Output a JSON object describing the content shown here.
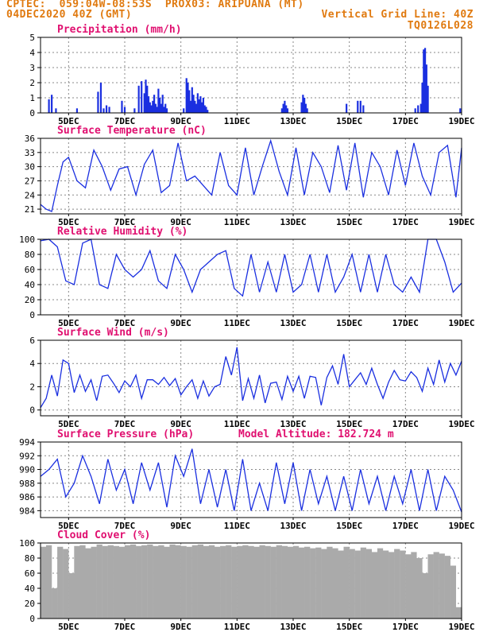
{
  "header": {
    "line1_left": "CPTEC:  059:04W-08:53S  PROX03: ARIPUANA (MT)",
    "line2_left": "04DEC2020 40Z (GMT)",
    "line2_right": "Vertical Grid Line: 40Z",
    "line3_right": "TQ0126L028"
  },
  "colors": {
    "header": "#e07a10",
    "title": "#e01070",
    "line": "#1a2fe0",
    "bar": "#1a2fe0",
    "cloud": "#aaaaaa",
    "grid": "#888888"
  },
  "x_ticks": [
    "5DEC",
    "7DEC",
    "9DEC",
    "11DEC",
    "13DEC",
    "15DEC",
    "17DEC",
    "19DEC"
  ],
  "model_altitude": "Model Altitude: 182.724 m",
  "chart_data": [
    {
      "type": "bar",
      "title": "Precipitation (mm/h)",
      "ylim": [
        0,
        5
      ],
      "yticks": [
        "0",
        "1",
        "2",
        "3",
        "4",
        "5"
      ],
      "x_range_days": [
        4.0,
        19.0
      ],
      "x": [
        4.3,
        4.4,
        4.55,
        5.3,
        6.05,
        6.15,
        6.25,
        6.35,
        6.45,
        6.9,
        7.0,
        7.35,
        7.5,
        7.6,
        7.7,
        7.75,
        7.8,
        7.85,
        7.9,
        7.95,
        8.0,
        8.05,
        8.1,
        8.15,
        8.2,
        8.25,
        8.3,
        8.35,
        8.4,
        8.45,
        8.5,
        9.1,
        9.2,
        9.25,
        9.3,
        9.35,
        9.4,
        9.45,
        9.5,
        9.55,
        9.6,
        9.65,
        9.7,
        9.75,
        9.8,
        9.85,
        9.9,
        9.95,
        12.6,
        12.65,
        12.7,
        12.75,
        12.8,
        13.3,
        13.35,
        13.4,
        13.45,
        13.5,
        14.9,
        15.3,
        15.4,
        15.5,
        17.35,
        17.45,
        17.55,
        17.6,
        17.65,
        17.7,
        17.75,
        17.8,
        18.95
      ],
      "values": [
        0.9,
        1.2,
        0.3,
        0.3,
        1.4,
        2.0,
        0.3,
        0.5,
        0.4,
        0.8,
        0.4,
        0.3,
        1.8,
        2.1,
        1.3,
        2.2,
        1.8,
        1.1,
        0.7,
        0.5,
        0.8,
        1.2,
        0.6,
        0.4,
        1.6,
        1.0,
        0.6,
        1.2,
        0.4,
        0.6,
        0.3,
        0.3,
        2.3,
        2.0,
        1.5,
        0.8,
        1.7,
        1.2,
        0.8,
        0.6,
        1.3,
        0.9,
        1.1,
        0.7,
        1.0,
        0.5,
        0.4,
        0.2,
        0.3,
        0.6,
        0.8,
        0.5,
        0.3,
        0.7,
        1.2,
        1.0,
        0.6,
        0.3,
        0.6,
        0.8,
        0.8,
        0.5,
        0.3,
        0.5,
        0.6,
        2.0,
        4.2,
        4.3,
        3.2,
        1.8,
        0.3
      ]
    },
    {
      "type": "line",
      "title": "Surface Temperature (nC)",
      "ylim": [
        20,
        36
      ],
      "yticks": [
        "21",
        "24",
        "27",
        "30",
        "33",
        "36"
      ],
      "ytick_values": [
        21,
        24,
        27,
        30,
        33,
        36
      ],
      "x": [
        4.0,
        4.2,
        4.4,
        4.6,
        4.8,
        5.0,
        5.3,
        5.6,
        5.9,
        6.2,
        6.5,
        6.8,
        7.1,
        7.4,
        7.7,
        8.0,
        8.3,
        8.6,
        8.9,
        9.2,
        9.5,
        9.8,
        10.1,
        10.4,
        10.7,
        11.0,
        11.3,
        11.6,
        11.9,
        12.2,
        12.5,
        12.8,
        13.1,
        13.4,
        13.7,
        14.0,
        14.3,
        14.6,
        14.9,
        15.2,
        15.5,
        15.8,
        16.1,
        16.4,
        16.7,
        17.0,
        17.3,
        17.6,
        17.9,
        18.2,
        18.5,
        18.8,
        19.0
      ],
      "values": [
        22,
        21,
        20.5,
        26,
        31,
        32,
        27,
        25.5,
        33.5,
        30,
        25,
        29.5,
        30,
        24,
        30.5,
        33.5,
        24.5,
        26,
        35,
        27,
        28,
        26,
        24,
        33,
        26,
        24,
        34,
        24,
        30,
        35.5,
        29,
        24,
        34,
        24,
        33,
        30,
        24.5,
        34.5,
        25,
        35,
        23.5,
        33,
        30,
        24,
        33.5,
        26,
        35,
        28,
        24,
        33,
        34.5,
        23.5,
        34
      ]
    },
    {
      "type": "line",
      "title": "Relative Humidity (%)",
      "ylim": [
        0,
        100
      ],
      "yticks": [
        "0",
        "20",
        "40",
        "60",
        "80",
        "100"
      ],
      "ytick_values": [
        0,
        20,
        40,
        60,
        80,
        100
      ],
      "x": [
        4.0,
        4.3,
        4.6,
        4.9,
        5.2,
        5.5,
        5.8,
        6.1,
        6.4,
        6.7,
        7.0,
        7.3,
        7.6,
        7.9,
        8.2,
        8.5,
        8.8,
        9.1,
        9.4,
        9.7,
        10.0,
        10.3,
        10.6,
        10.9,
        11.2,
        11.5,
        11.8,
        12.1,
        12.4,
        12.7,
        13.0,
        13.3,
        13.6,
        13.9,
        14.2,
        14.5,
        14.8,
        15.1,
        15.4,
        15.7,
        16.0,
        16.3,
        16.6,
        16.9,
        17.2,
        17.5,
        17.8,
        18.1,
        18.4,
        18.7,
        19.0
      ],
      "values": [
        98,
        100,
        90,
        45,
        40,
        95,
        100,
        40,
        35,
        80,
        60,
        50,
        60,
        85,
        45,
        35,
        80,
        60,
        30,
        60,
        70,
        80,
        85,
        35,
        25,
        80,
        30,
        70,
        30,
        80,
        30,
        40,
        80,
        30,
        80,
        30,
        50,
        80,
        30,
        80,
        30,
        80,
        40,
        30,
        50,
        30,
        100,
        100,
        70,
        30,
        42
      ]
    },
    {
      "type": "line",
      "title": "Surface Wind (m/s)",
      "ylim": [
        -0.5,
        6
      ],
      "yticks": [
        "0",
        "2",
        "4",
        "6"
      ],
      "ytick_values": [
        0,
        2,
        4,
        6
      ],
      "x": [
        4.0,
        4.2,
        4.4,
        4.6,
        4.8,
        5.0,
        5.2,
        5.4,
        5.6,
        5.8,
        6.0,
        6.2,
        6.4,
        6.6,
        6.8,
        7.0,
        7.2,
        7.4,
        7.6,
        7.8,
        8.0,
        8.2,
        8.4,
        8.6,
        8.8,
        9.0,
        9.2,
        9.4,
        9.6,
        9.8,
        10.0,
        10.2,
        10.4,
        10.6,
        10.8,
        11.0,
        11.2,
        11.4,
        11.6,
        11.8,
        12.0,
        12.2,
        12.4,
        12.6,
        12.8,
        13.0,
        13.2,
        13.4,
        13.6,
        13.8,
        14.0,
        14.2,
        14.4,
        14.6,
        14.8,
        15.0,
        15.2,
        15.4,
        15.6,
        15.8,
        16.0,
        16.2,
        16.4,
        16.6,
        16.8,
        17.0,
        17.2,
        17.4,
        17.6,
        17.8,
        18.0,
        18.2,
        18.4,
        18.6,
        18.8,
        19.0
      ],
      "values": [
        0.2,
        1.0,
        3.0,
        1.2,
        4.3,
        4.0,
        1.5,
        3.0,
        1.6,
        2.6,
        0.8,
        2.9,
        3.0,
        2.3,
        1.5,
        2.5,
        2.0,
        3.0,
        1.0,
        2.6,
        2.6,
        2.2,
        2.8,
        2.1,
        2.7,
        1.3,
        2.0,
        2.6,
        1.0,
        2.5,
        1.2,
        2.0,
        2.2,
        4.6,
        3.0,
        5.4,
        0.8,
        2.7,
        1.0,
        3.0,
        0.6,
        2.3,
        2.4,
        0.9,
        2.9,
        1.6,
        2.9,
        1.0,
        2.9,
        2.8,
        0.4,
        2.8,
        3.8,
        2.2,
        4.8,
        2.0,
        2.6,
        3.2,
        2.2,
        3.6,
        2.2,
        1.0,
        2.4,
        3.4,
        2.6,
        2.5,
        3.3,
        2.8,
        1.6,
        3.6,
        2.2,
        4.3,
        2.4,
        4.0,
        3.0,
        4.2
      ]
    },
    {
      "type": "line",
      "title": "Surface Pressure (hPa)",
      "ylim": [
        983,
        994
      ],
      "yticks": [
        "984",
        "986",
        "988",
        "990",
        "992",
        "994"
      ],
      "ytick_values": [
        984,
        986,
        988,
        990,
        992,
        994
      ],
      "x": [
        4.0,
        4.3,
        4.6,
        4.9,
        5.2,
        5.5,
        5.8,
        6.1,
        6.4,
        6.7,
        7.0,
        7.3,
        7.6,
        7.9,
        8.2,
        8.5,
        8.8,
        9.1,
        9.4,
        9.7,
        10.0,
        10.3,
        10.6,
        10.9,
        11.2,
        11.5,
        11.8,
        12.1,
        12.4,
        12.7,
        13.0,
        13.3,
        13.6,
        13.9,
        14.2,
        14.5,
        14.8,
        15.1,
        15.4,
        15.7,
        16.0,
        16.3,
        16.6,
        16.9,
        17.2,
        17.5,
        17.8,
        18.1,
        18.4,
        18.7,
        19.0
      ],
      "values": [
        989,
        990,
        991.5,
        986,
        988,
        992,
        989,
        985,
        991.5,
        987,
        990,
        985,
        991,
        987,
        991,
        984.5,
        992,
        989,
        993,
        985,
        990,
        984.5,
        990,
        984,
        991.5,
        984,
        988,
        984,
        991,
        985,
        991,
        984,
        990,
        985,
        989,
        984,
        989,
        984,
        990,
        985,
        989,
        984,
        989,
        985,
        990,
        984,
        990,
        984,
        989,
        987,
        983.8
      ]
    },
    {
      "type": "bar",
      "title": "Cloud Cover (%)",
      "ylim": [
        0,
        100
      ],
      "yticks": [
        "0",
        "20",
        "40",
        "60",
        "80",
        "100"
      ],
      "x": [
        4.1,
        4.3,
        4.5,
        4.7,
        4.9,
        5.1,
        5.3,
        5.5,
        5.7,
        5.9,
        6.1,
        6.3,
        6.5,
        6.7,
        6.9,
        7.1,
        7.3,
        7.5,
        7.7,
        7.9,
        8.1,
        8.3,
        8.5,
        8.7,
        8.9,
        9.1,
        9.3,
        9.5,
        9.7,
        9.9,
        10.1,
        10.3,
        10.5,
        10.7,
        10.9,
        11.1,
        11.3,
        11.5,
        11.7,
        11.9,
        12.1,
        12.3,
        12.5,
        12.7,
        12.9,
        13.1,
        13.3,
        13.5,
        13.7,
        13.9,
        14.1,
        14.3,
        14.5,
        14.7,
        14.9,
        15.1,
        15.3,
        15.5,
        15.7,
        15.9,
        16.1,
        16.3,
        16.5,
        16.7,
        16.9,
        17.1,
        17.3,
        17.5,
        17.7,
        17.9,
        18.1,
        18.3,
        18.5,
        18.7,
        18.9
      ],
      "values": [
        95,
        97,
        40,
        95,
        92,
        60,
        96,
        97,
        93,
        95,
        98,
        96,
        97,
        96,
        95,
        97,
        98,
        96,
        97,
        98,
        96,
        97,
        95,
        98,
        97,
        96,
        95,
        97,
        98,
        96,
        97,
        95,
        96,
        97,
        95,
        96,
        97,
        96,
        95,
        97,
        96,
        95,
        97,
        96,
        95,
        96,
        94,
        95,
        93,
        94,
        92,
        95,
        93,
        90,
        95,
        92,
        90,
        94,
        92,
        88,
        93,
        90,
        88,
        92,
        90,
        85,
        88,
        80,
        60,
        85,
        88,
        86,
        83,
        70,
        15
      ]
    }
  ]
}
